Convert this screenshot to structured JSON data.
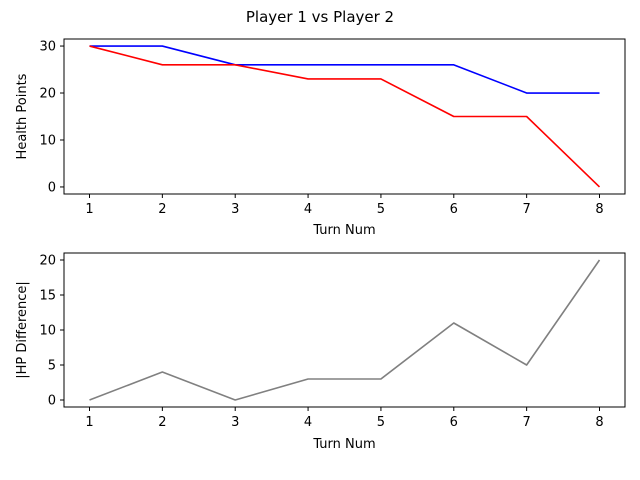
{
  "figure_title": "Player 1 vs Player 2",
  "chart_data": [
    {
      "type": "line",
      "title": "",
      "xlabel": "Turn Num",
      "ylabel": "Health Points",
      "x": [
        1,
        2,
        3,
        4,
        5,
        6,
        7,
        8
      ],
      "xticks": [
        "1",
        "2",
        "3",
        "4",
        "5",
        "6",
        "7",
        "8"
      ],
      "yticks": [
        "0",
        "10",
        "20",
        "30"
      ],
      "xlim": [
        0.65,
        8.35
      ],
      "ylim": [
        -1.5,
        31.5
      ],
      "grid": false,
      "series": [
        {
          "color": "#0000ff",
          "values": [
            30,
            30,
            26,
            26,
            26,
            26,
            20,
            20
          ]
        },
        {
          "color": "#ff0000",
          "values": [
            30,
            26,
            26,
            23,
            23,
            15,
            15,
            0
          ]
        }
      ]
    },
    {
      "type": "line",
      "title": "",
      "xlabel": "Turn Num",
      "ylabel": "|HP Difference|",
      "x": [
        1,
        2,
        3,
        4,
        5,
        6,
        7,
        8
      ],
      "xticks": [
        "1",
        "2",
        "3",
        "4",
        "5",
        "6",
        "7",
        "8"
      ],
      "yticks": [
        "0",
        "5",
        "10",
        "15",
        "20"
      ],
      "xlim": [
        0.65,
        8.35
      ],
      "ylim": [
        -1.0,
        21.0
      ],
      "grid": false,
      "series": [
        {
          "color": "#808080",
          "values": [
            0,
            4,
            0,
            3,
            3,
            11,
            5,
            20
          ]
        }
      ]
    }
  ]
}
